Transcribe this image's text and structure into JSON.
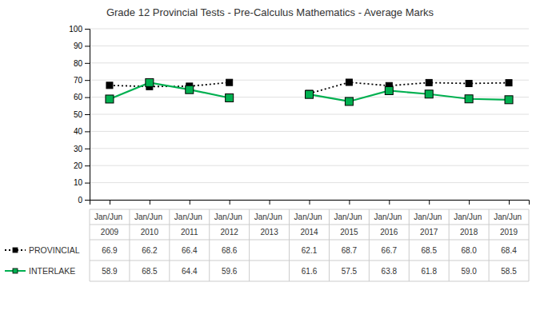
{
  "chart_data": {
    "type": "line",
    "title": "Grade 12 Provincial Tests - Pre-Calculus Mathematics - Average Marks",
    "categories": [
      "Jan/Jun 2009",
      "Jan/Jun 2010",
      "Jan/Jun 2011",
      "Jan/Jun 2012",
      "Jan/Jun 2013",
      "Jan/Jun 2014",
      "Jan/Jun 2015",
      "Jan/Jun 2016",
      "Jan/Jun 2017",
      "Jan/Jun 2018",
      "Jan/Jun 2019"
    ],
    "series": [
      {
        "name": "PROVINCIAL",
        "color": "#000000",
        "marker": "square",
        "line_style": "dotted",
        "values": [
          66.9,
          66.2,
          66.4,
          68.6,
          null,
          62.1,
          68.7,
          66.7,
          68.5,
          68.0,
          68.4
        ],
        "value_labels": [
          "66.9",
          "66.2",
          "66.4",
          "68.6",
          null,
          "62.1",
          "68.7",
          "66.7",
          "68.5",
          "68.0",
          "68.4"
        ]
      },
      {
        "name": "INTERLAKE",
        "color": "#00b050",
        "marker": "square",
        "line_style": "solid",
        "values": [
          58.9,
          68.5,
          64.4,
          59.6,
          null,
          61.6,
          57.5,
          63.8,
          61.8,
          59.0,
          58.5
        ],
        "value_labels": [
          "58.9",
          "68.5",
          "64.4",
          "59.6",
          null,
          "61.6",
          "57.5",
          "63.8",
          "61.8",
          "59.0",
          "58.5"
        ]
      }
    ],
    "ylim": [
      0,
      100
    ],
    "yticks": [
      0,
      10,
      20,
      30,
      40,
      50,
      60,
      70,
      80,
      90,
      100
    ],
    "grid": true,
    "data_labels": true
  }
}
